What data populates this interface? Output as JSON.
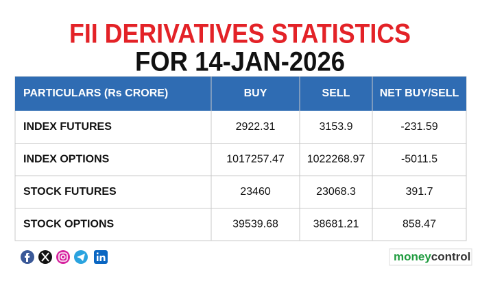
{
  "header": {
    "title": "FII DERIVATIVES STATISTICS",
    "subtitle": "FOR 14-JAN-2026"
  },
  "table": {
    "header": [
      "PARTICULARS (Rs CRORE)",
      "BUY",
      "SELL",
      "NET BUY/SELL"
    ],
    "rows": [
      [
        "INDEX FUTURES",
        "2922.31",
        "3153.9",
        "-231.59"
      ],
      [
        "INDEX OPTIONS",
        "1017257.47",
        "1022268.97",
        "-5011.5"
      ],
      [
        "STOCK FUTURES",
        "23460",
        "23068.3",
        "391.7"
      ],
      [
        "STOCK OPTIONS",
        "39539.68",
        "38681.21",
        "858.47"
      ]
    ]
  },
  "footer": {
    "logo": [
      "money",
      "control"
    ]
  }
}
